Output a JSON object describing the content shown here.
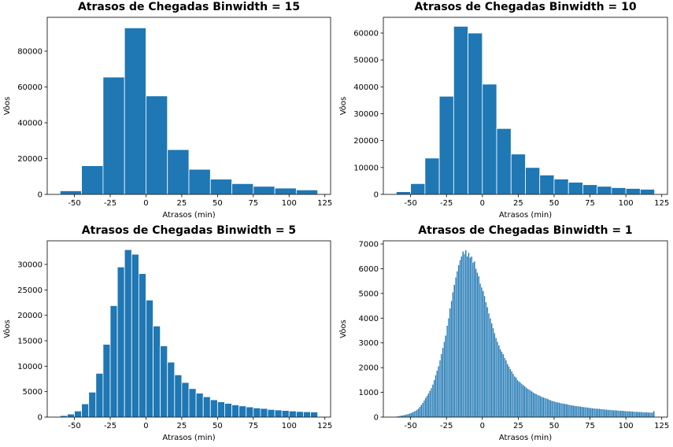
{
  "chart_data": [
    {
      "type": "histogram",
      "title": "Atrasos de Chegadas Binwidth = 15",
      "xlabel": "Atrasos (min)",
      "ylabel": "Vôos",
      "color": "#1f77b4",
      "edgecolor": "#ffffff",
      "bins": [
        -60,
        -45,
        -30,
        -15,
        0,
        15,
        30,
        45,
        60,
        75,
        90,
        105,
        120
      ],
      "values": [
        2000,
        16000,
        65500,
        93000,
        55000,
        25000,
        14000,
        8500,
        6000,
        4500,
        3500,
        2500
      ],
      "xlim": [
        -69,
        129
      ],
      "ylim": [
        0,
        98900
      ],
      "xticks": [
        -50,
        -25,
        0,
        25,
        50,
        75,
        100,
        125
      ],
      "yticks": [
        0,
        20000,
        40000,
        60000,
        80000
      ]
    },
    {
      "type": "histogram",
      "title": "Atrasos de Chegadas Binwidth = 10",
      "xlabel": "Atrasos (min)",
      "ylabel": "Vôos",
      "color": "#1f77b4",
      "edgecolor": "#ffffff",
      "bins": [
        -60,
        -50,
        -40,
        -30,
        -20,
        -10,
        0,
        10,
        20,
        30,
        40,
        50,
        60,
        70,
        80,
        90,
        100,
        110,
        120
      ],
      "values": [
        1000,
        4000,
        13500,
        36500,
        62500,
        60000,
        41000,
        24500,
        15000,
        10000,
        7200,
        5700,
        4500,
        3600,
        3000,
        2500,
        2200,
        1900
      ],
      "xlim": [
        -69,
        129
      ],
      "ylim": [
        0,
        65850
      ],
      "xticks": [
        -50,
        -25,
        0,
        25,
        50,
        75,
        100,
        125
      ],
      "yticks": [
        0,
        10000,
        20000,
        30000,
        40000,
        50000,
        60000
      ]
    },
    {
      "type": "histogram",
      "title": "Atrasos de Chegadas Binwidth = 5",
      "xlabel": "Atrasos (min)",
      "ylabel": "Vôos",
      "color": "#1f77b4",
      "edgecolor": "#ffffff",
      "bins": [
        -60,
        -55,
        -50,
        -45,
        -40,
        -35,
        -30,
        -25,
        -20,
        -15,
        -10,
        -5,
        0,
        5,
        10,
        15,
        20,
        25,
        30,
        35,
        40,
        45,
        50,
        55,
        60,
        65,
        70,
        75,
        80,
        85,
        90,
        95,
        100,
        105,
        110,
        115,
        120
      ],
      "values": [
        300,
        600,
        1200,
        2600,
        4900,
        8600,
        14300,
        21900,
        29500,
        32900,
        32000,
        28200,
        23000,
        17900,
        14000,
        10800,
        8300,
        6800,
        5600,
        4700,
        4000,
        3400,
        3000,
        2700,
        2400,
        2200,
        2000,
        1800,
        1700,
        1500,
        1400,
        1300,
        1200,
        1100,
        1050,
        1000
      ],
      "xlim": [
        -69,
        129
      ],
      "ylim": [
        0,
        34640
      ],
      "xticks": [
        -50,
        -25,
        0,
        25,
        50,
        75,
        100,
        125
      ],
      "yticks": [
        0,
        5000,
        10000,
        15000,
        20000,
        25000,
        30000
      ]
    },
    {
      "type": "histogram",
      "title": "Atrasos de Chegadas Binwidth = 1",
      "xlabel": "Atrasos (min)",
      "ylabel": "Vôos",
      "color": "#1f77b4",
      "edgecolor": "#ffffff",
      "bins": [
        -60,
        -59,
        -58,
        -57,
        -56,
        -55,
        -54,
        -53,
        -52,
        -51,
        -50,
        -49,
        -48,
        -47,
        -46,
        -45,
        -44,
        -43,
        -42,
        -41,
        -40,
        -39,
        -38,
        -37,
        -36,
        -35,
        -34,
        -33,
        -32,
        -31,
        -30,
        -29,
        -28,
        -27,
        -26,
        -25,
        -24,
        -23,
        -22,
        -21,
        -20,
        -19,
        -18,
        -17,
        -16,
        -15,
        -14,
        -13,
        -12,
        -11,
        -10,
        -9,
        -8,
        -7,
        -6,
        -5,
        -4,
        -3,
        -2,
        -1,
        0,
        1,
        2,
        3,
        4,
        5,
        6,
        7,
        8,
        9,
        10,
        11,
        12,
        13,
        14,
        15,
        16,
        17,
        18,
        19,
        20,
        21,
        22,
        23,
        24,
        25,
        26,
        27,
        28,
        29,
        30,
        31,
        32,
        33,
        34,
        35,
        36,
        37,
        38,
        39,
        40,
        41,
        42,
        43,
        44,
        45,
        46,
        47,
        48,
        49,
        50,
        51,
        52,
        53,
        54,
        55,
        56,
        57,
        58,
        59,
        60,
        61,
        62,
        63,
        64,
        65,
        66,
        67,
        68,
        69,
        70,
        71,
        72,
        73,
        74,
        75,
        76,
        77,
        78,
        79,
        80,
        81,
        82,
        83,
        84,
        85,
        86,
        87,
        88,
        89,
        90,
        91,
        92,
        93,
        94,
        95,
        96,
        97,
        98,
        99,
        100,
        101,
        102,
        103,
        104,
        105,
        106,
        107,
        108,
        109,
        110,
        111,
        112,
        113,
        114,
        115,
        116,
        117,
        118,
        119,
        120
      ],
      "values": [
        30,
        40,
        55,
        65,
        75,
        85,
        100,
        115,
        135,
        150,
        170,
        200,
        230,
        260,
        300,
        350,
        420,
        500,
        580,
        680,
        780,
        870,
        960,
        1070,
        1180,
        1320,
        1500,
        1700,
        1880,
        2060,
        2300,
        2550,
        2800,
        3050,
        3300,
        3700,
        4000,
        4400,
        4700,
        5050,
        5350,
        5650,
        5900,
        6150,
        6350,
        6500,
        6700,
        6600,
        6750,
        6500,
        6650,
        6450,
        6500,
        6250,
        6300,
        6000,
        5850,
        5700,
        5400,
        5250,
        5100,
        4900,
        4650,
        4450,
        4200,
        4000,
        3800,
        3600,
        3400,
        3200,
        3050,
        2900,
        2750,
        2650,
        2550,
        2400,
        2300,
        2150,
        2050,
        1950,
        1850,
        1750,
        1650,
        1600,
        1500,
        1450,
        1400,
        1350,
        1300,
        1250,
        1200,
        1150,
        1120,
        1080,
        1040,
        1000,
        960,
        940,
        900,
        880,
        850,
        820,
        800,
        780,
        760,
        740,
        700,
        690,
        660,
        650,
        630,
        610,
        600,
        590,
        570,
        560,
        550,
        540,
        530,
        520,
        500,
        490,
        480,
        470,
        460,
        450,
        445,
        440,
        430,
        420,
        410,
        400,
        400,
        390,
        380,
        370,
        365,
        360,
        350,
        345,
        340,
        340,
        330,
        330,
        320,
        310,
        305,
        300,
        300,
        290,
        285,
        280,
        280,
        275,
        270,
        265,
        260,
        260,
        255,
        250,
        245,
        240,
        240,
        235,
        230,
        225,
        220,
        220,
        215,
        210,
        210,
        205,
        200,
        200,
        195,
        195,
        190,
        190,
        185,
        250
      ],
      "xlim": [
        -69,
        129
      ],
      "ylim": [
        0,
        7127
      ],
      "xticks": [
        -50,
        -25,
        0,
        25,
        50,
        75,
        100,
        125
      ],
      "yticks": [
        0,
        1000,
        2000,
        3000,
        4000,
        5000,
        6000,
        7000
      ]
    }
  ]
}
